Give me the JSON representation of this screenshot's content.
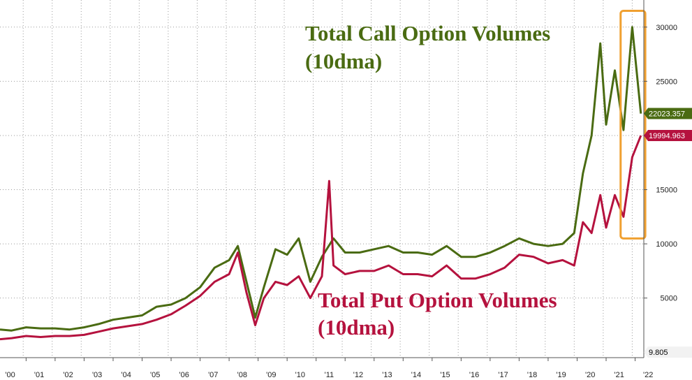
{
  "chart_data": {
    "type": "line",
    "x_ticks": [
      "'00",
      "'01",
      "'02",
      "'03",
      "'04",
      "'05",
      "'06",
      "'07",
      "'08",
      "'09",
      "'10",
      "'11",
      "'12",
      "'13",
      "'14",
      "'15",
      "'16",
      "'17",
      "'18",
      "'19",
      "'20",
      "'21",
      "'22"
    ],
    "y_ticks": [
      5000,
      10000,
      15000,
      20000,
      25000,
      30000
    ],
    "y_tick_labels": [
      "5000",
      "10000",
      "15000",
      "20000",
      "25000",
      "30000"
    ],
    "ylim": [
      -500,
      32500
    ],
    "xlim": [
      2000.1,
      2022.3
    ],
    "grid": true,
    "y_axis_side": "right",
    "series": [
      {
        "name": "Total Call Option Volumes (10dma)",
        "color": "#4a6b12",
        "last_value_label": "22023.357",
        "points": [
          [
            2000.1,
            2100
          ],
          [
            2000.5,
            2000
          ],
          [
            2001,
            2300
          ],
          [
            2001.5,
            2200
          ],
          [
            2002,
            2200
          ],
          [
            2002.5,
            2100
          ],
          [
            2003,
            2300
          ],
          [
            2003.5,
            2600
          ],
          [
            2004,
            3000
          ],
          [
            2004.5,
            3200
          ],
          [
            2005,
            3400
          ],
          [
            2005.5,
            4200
          ],
          [
            2006,
            4400
          ],
          [
            2006.5,
            5000
          ],
          [
            2007,
            6000
          ],
          [
            2007.5,
            7800
          ],
          [
            2008,
            8500
          ],
          [
            2008.3,
            9800
          ],
          [
            2008.6,
            6500
          ],
          [
            2008.9,
            3200
          ],
          [
            2009.2,
            6000
          ],
          [
            2009.6,
            9500
          ],
          [
            2010,
            9000
          ],
          [
            2010.4,
            10500
          ],
          [
            2010.8,
            6500
          ],
          [
            2011.2,
            8800
          ],
          [
            2011.6,
            10500
          ],
          [
            2012,
            9200
          ],
          [
            2012.5,
            9200
          ],
          [
            2013,
            9500
          ],
          [
            2013.5,
            9800
          ],
          [
            2014,
            9200
          ],
          [
            2014.5,
            9200
          ],
          [
            2015,
            9000
          ],
          [
            2015.5,
            9800
          ],
          [
            2016,
            8800
          ],
          [
            2016.5,
            8800
          ],
          [
            2017,
            9200
          ],
          [
            2017.5,
            9800
          ],
          [
            2018,
            10500
          ],
          [
            2018.5,
            10000
          ],
          [
            2019,
            9800
          ],
          [
            2019.5,
            10000
          ],
          [
            2019.9,
            11000
          ],
          [
            2020.2,
            16500
          ],
          [
            2020.5,
            20000
          ],
          [
            2020.8,
            28500
          ],
          [
            2021,
            21000
          ],
          [
            2021.3,
            26000
          ],
          [
            2021.6,
            20500
          ],
          [
            2021.9,
            30000
          ],
          [
            2022.2,
            22023
          ]
        ]
      },
      {
        "name": "Total Put Option Volumes (10dma)",
        "color": "#b5123e",
        "last_value_label": "19994.963",
        "points": [
          [
            2000.1,
            1200
          ],
          [
            2000.5,
            1300
          ],
          [
            2001,
            1500
          ],
          [
            2001.5,
            1400
          ],
          [
            2002,
            1500
          ],
          [
            2002.5,
            1500
          ],
          [
            2003,
            1600
          ],
          [
            2003.5,
            1900
          ],
          [
            2004,
            2200
          ],
          [
            2004.5,
            2400
          ],
          [
            2005,
            2600
          ],
          [
            2005.5,
            3000
          ],
          [
            2006,
            3500
          ],
          [
            2006.5,
            4300
          ],
          [
            2007,
            5200
          ],
          [
            2007.5,
            6500
          ],
          [
            2008,
            7200
          ],
          [
            2008.3,
            9200
          ],
          [
            2008.6,
            5500
          ],
          [
            2008.9,
            2500
          ],
          [
            2009.2,
            5000
          ],
          [
            2009.6,
            6500
          ],
          [
            2010,
            6200
          ],
          [
            2010.4,
            7000
          ],
          [
            2010.8,
            5000
          ],
          [
            2011.2,
            7000
          ],
          [
            2011.45,
            15800
          ],
          [
            2011.6,
            8000
          ],
          [
            2012,
            7200
          ],
          [
            2012.5,
            7500
          ],
          [
            2013,
            7500
          ],
          [
            2013.5,
            8000
          ],
          [
            2014,
            7200
          ],
          [
            2014.5,
            7200
          ],
          [
            2015,
            7000
          ],
          [
            2015.5,
            8000
          ],
          [
            2016,
            6800
          ],
          [
            2016.5,
            6800
          ],
          [
            2017,
            7200
          ],
          [
            2017.5,
            7800
          ],
          [
            2018,
            9000
          ],
          [
            2018.5,
            8800
          ],
          [
            2019,
            8200
          ],
          [
            2019.5,
            8500
          ],
          [
            2019.9,
            8000
          ],
          [
            2020.2,
            12000
          ],
          [
            2020.5,
            11000
          ],
          [
            2020.8,
            14500
          ],
          [
            2021,
            11500
          ],
          [
            2021.3,
            14500
          ],
          [
            2021.6,
            12500
          ],
          [
            2021.9,
            18000
          ],
          [
            2022.2,
            19995
          ]
        ]
      }
    ],
    "extra_badge_label": "9.805",
    "highlight_box": {
      "x_start": 2021.5,
      "x_end": 2022.35,
      "color": "#f0a030"
    }
  },
  "annotations": {
    "call_line1": "Total Call Option Volumes",
    "call_line2": "(10dma)",
    "put_line1": "Total Put Option Volumes",
    "put_line2": "(10dma)"
  }
}
